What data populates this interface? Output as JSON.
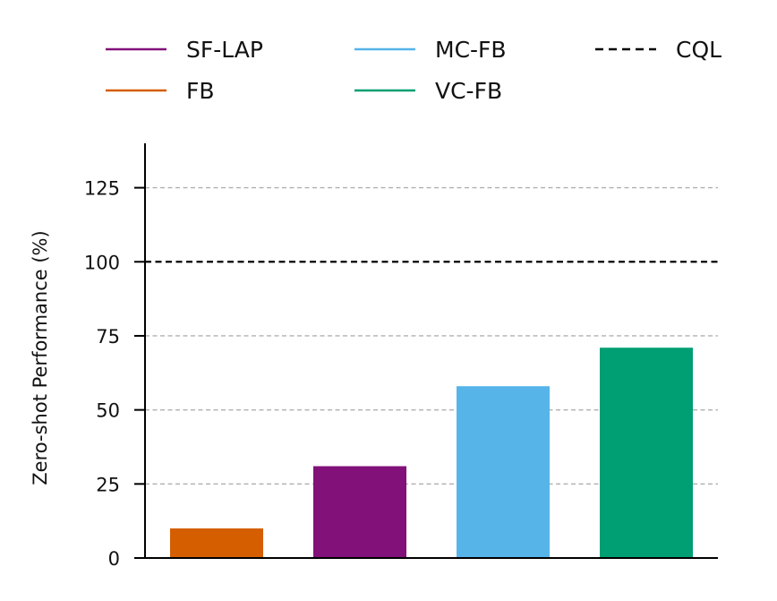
{
  "chart_data": {
    "type": "bar",
    "ylabel": "Zero-shot Performance (%)",
    "xlabel": "",
    "ylim": [
      0,
      140
    ],
    "yticks": [
      0,
      25,
      50,
      75,
      100,
      125
    ],
    "grid": "horizontal dashed",
    "legend_position": "top",
    "series": [
      {
        "name": "FB",
        "value": 10,
        "color": "#D55E00"
      },
      {
        "name": "SF-LAP",
        "value": 31,
        "color": "#82117A"
      },
      {
        "name": "MC-FB",
        "value": 58,
        "color": "#56B4E9"
      },
      {
        "name": "VC-FB",
        "value": 71,
        "color": "#009E73"
      }
    ],
    "reference_line": {
      "name": "CQL",
      "value": 100,
      "color": "#000000",
      "style": "dashed"
    },
    "legend": [
      {
        "label": "SF-LAP",
        "color": "#82117A",
        "style": "solid"
      },
      {
        "label": "FB",
        "color": "#D55E00",
        "style": "solid"
      },
      {
        "label": "MC-FB",
        "color": "#56B4E9",
        "style": "solid"
      },
      {
        "label": "VC-FB",
        "color": "#009E73",
        "style": "solid"
      },
      {
        "label": "CQL",
        "color": "#000000",
        "style": "dashed"
      }
    ]
  }
}
